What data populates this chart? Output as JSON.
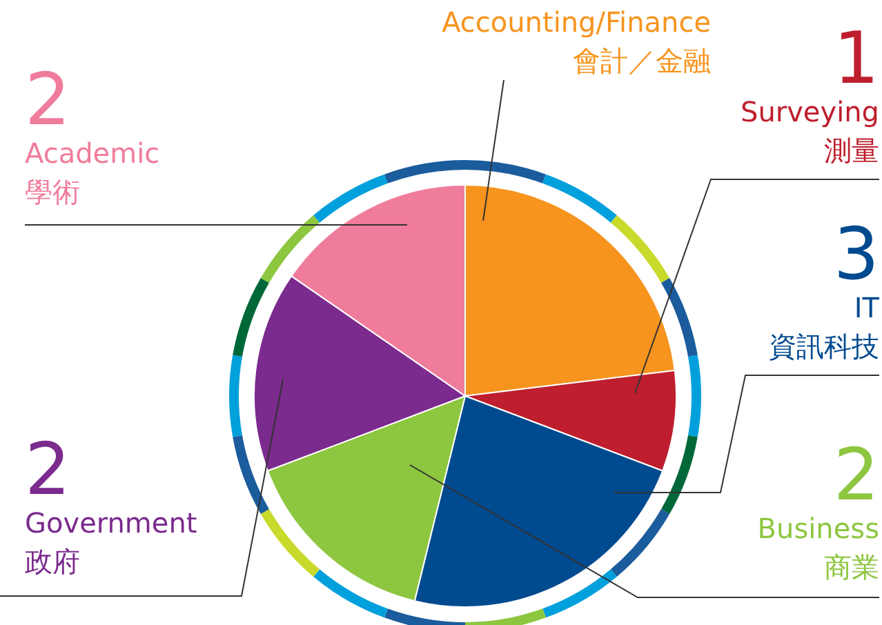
{
  "chart_data": {
    "type": "pie",
    "categories": [
      "Accounting/Finance\n會計／金融",
      "Surveying\n測量",
      "IT\n資訊科技",
      "Business\n商業",
      "Government\n政府",
      "Academic\n學術"
    ],
    "values": [
      3,
      1,
      3,
      2,
      2,
      2
    ],
    "value_labels": [
      null,
      "1",
      "3",
      "2",
      "2",
      "2"
    ],
    "colors": [
      "#f7941d",
      "#be1e2d",
      "#004a8f",
      "#8dc63f",
      "#7b2a8e",
      "#f07c9b"
    ]
  }
}
